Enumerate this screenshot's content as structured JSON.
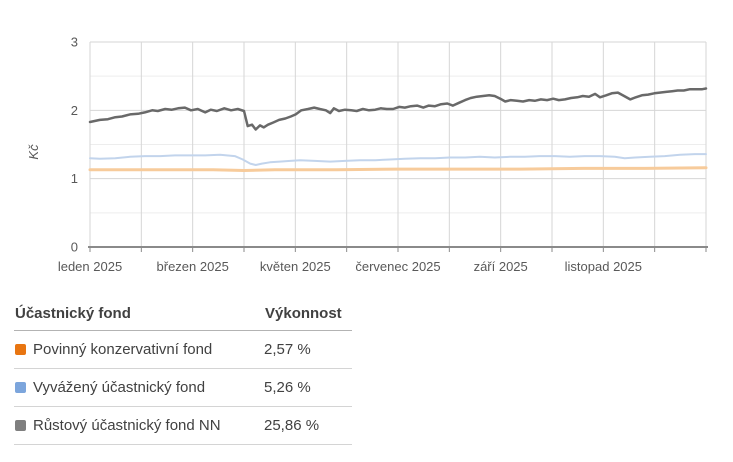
{
  "colors": {
    "grid_major": "#d6d6d6",
    "grid_minor": "#ededed",
    "axis_line": "#8a8a8a",
    "tick_text": "#595959",
    "table_text": "#414141"
  },
  "chart_data": {
    "type": "line",
    "title": "",
    "xlabel": "",
    "ylabel": "Kč",
    "ylim": [
      0,
      3
    ],
    "y_ticks": [
      0,
      1,
      2,
      3
    ],
    "y_minor_gridlines": [
      0.5,
      1.5,
      2.5
    ],
    "x_range_months": 12,
    "x_tick_labels": [
      "leden 2025",
      "březen 2025",
      "květen 2025",
      "červenec 2025",
      "září 2025",
      "listopad 2025"
    ],
    "x_tick_label_month_positions": [
      0,
      2,
      4,
      6,
      8,
      10
    ],
    "grid": "on",
    "legend_position": "table-below",
    "series": [
      {
        "name": "Povinný konzervativní fond",
        "color": "#f7cb9b",
        "width": 3,
        "points": [
          [
            0,
            1.13
          ],
          [
            0.1,
            1.13
          ],
          [
            0.2,
            1.13
          ],
          [
            0.25,
            1.12
          ],
          [
            0.3,
            1.13
          ],
          [
            0.4,
            1.13
          ],
          [
            0.5,
            1.14
          ],
          [
            0.6,
            1.14
          ],
          [
            0.7,
            1.14
          ],
          [
            0.8,
            1.15
          ],
          [
            0.9,
            1.15
          ],
          [
            1,
            1.16
          ]
        ]
      },
      {
        "name": "Vyvážený účastnický fond",
        "color": "#c2d4ec",
        "width": 2,
        "points": [
          [
            0,
            1.3
          ],
          [
            0.016,
            1.29
          ],
          [
            0.041,
            1.3
          ],
          [
            0.065,
            1.32
          ],
          [
            0.089,
            1.33
          ],
          [
            0.114,
            1.33
          ],
          [
            0.138,
            1.34
          ],
          [
            0.162,
            1.34
          ],
          [
            0.187,
            1.34
          ],
          [
            0.211,
            1.35
          ],
          [
            0.235,
            1.33
          ],
          [
            0.248,
            1.28
          ],
          [
            0.26,
            1.22
          ],
          [
            0.269,
            1.2
          ],
          [
            0.279,
            1.22
          ],
          [
            0.292,
            1.24
          ],
          [
            0.308,
            1.25
          ],
          [
            0.325,
            1.26
          ],
          [
            0.341,
            1.27
          ],
          [
            0.365,
            1.26
          ],
          [
            0.39,
            1.25
          ],
          [
            0.414,
            1.26
          ],
          [
            0.438,
            1.27
          ],
          [
            0.463,
            1.27
          ],
          [
            0.487,
            1.28
          ],
          [
            0.511,
            1.29
          ],
          [
            0.536,
            1.3
          ],
          [
            0.56,
            1.3
          ],
          [
            0.584,
            1.31
          ],
          [
            0.609,
            1.31
          ],
          [
            0.633,
            1.32
          ],
          [
            0.657,
            1.31
          ],
          [
            0.682,
            1.32
          ],
          [
            0.706,
            1.32
          ],
          [
            0.73,
            1.33
          ],
          [
            0.755,
            1.33
          ],
          [
            0.779,
            1.32
          ],
          [
            0.803,
            1.33
          ],
          [
            0.828,
            1.33
          ],
          [
            0.852,
            1.32
          ],
          [
            0.868,
            1.3
          ],
          [
            0.885,
            1.31
          ],
          [
            0.909,
            1.32
          ],
          [
            0.933,
            1.33
          ],
          [
            0.958,
            1.35
          ],
          [
            0.982,
            1.36
          ],
          [
            1,
            1.36
          ]
        ]
      },
      {
        "name": "Růstový účastnický fond NN",
        "color": "#696969",
        "width": 2.5,
        "points": [
          [
            0,
            1.83
          ],
          [
            0.016,
            1.86
          ],
          [
            0.029,
            1.87
          ],
          [
            0.041,
            1.9
          ],
          [
            0.052,
            1.91
          ],
          [
            0.065,
            1.94
          ],
          [
            0.078,
            1.95
          ],
          [
            0.089,
            1.97
          ],
          [
            0.101,
            2.0
          ],
          [
            0.11,
            1.99
          ],
          [
            0.122,
            2.02
          ],
          [
            0.133,
            2.01
          ],
          [
            0.143,
            2.03
          ],
          [
            0.154,
            2.04
          ],
          [
            0.164,
            2.0
          ],
          [
            0.175,
            2.02
          ],
          [
            0.187,
            1.97
          ],
          [
            0.196,
            2.01
          ],
          [
            0.206,
            1.99
          ],
          [
            0.218,
            2.03
          ],
          [
            0.229,
            2.0
          ],
          [
            0.24,
            2.02
          ],
          [
            0.25,
            1.99
          ],
          [
            0.256,
            1.77
          ],
          [
            0.263,
            1.79
          ],
          [
            0.269,
            1.72
          ],
          [
            0.276,
            1.78
          ],
          [
            0.282,
            1.75
          ],
          [
            0.289,
            1.79
          ],
          [
            0.297,
            1.82
          ],
          [
            0.307,
            1.86
          ],
          [
            0.317,
            1.88
          ],
          [
            0.326,
            1.91
          ],
          [
            0.334,
            1.94
          ],
          [
            0.343,
            2.0
          ],
          [
            0.354,
            2.02
          ],
          [
            0.364,
            2.04
          ],
          [
            0.373,
            2.02
          ],
          [
            0.383,
            2.0
          ],
          [
            0.39,
            1.96
          ],
          [
            0.396,
            2.03
          ],
          [
            0.404,
            1.99
          ],
          [
            0.414,
            2.01
          ],
          [
            0.424,
            2.0
          ],
          [
            0.433,
            1.99
          ],
          [
            0.443,
            2.02
          ],
          [
            0.453,
            2.0
          ],
          [
            0.463,
            2.01
          ],
          [
            0.472,
            2.03
          ],
          [
            0.482,
            2.02
          ],
          [
            0.492,
            2.02
          ],
          [
            0.502,
            2.05
          ],
          [
            0.511,
            2.04
          ],
          [
            0.521,
            2.06
          ],
          [
            0.531,
            2.07
          ],
          [
            0.541,
            2.04
          ],
          [
            0.55,
            2.07
          ],
          [
            0.56,
            2.06
          ],
          [
            0.57,
            2.09
          ],
          [
            0.58,
            2.1
          ],
          [
            0.589,
            2.07
          ],
          [
            0.599,
            2.11
          ],
          [
            0.609,
            2.15
          ],
          [
            0.618,
            2.18
          ],
          [
            0.628,
            2.2
          ],
          [
            0.638,
            2.21
          ],
          [
            0.648,
            2.22
          ],
          [
            0.657,
            2.21
          ],
          [
            0.666,
            2.17
          ],
          [
            0.674,
            2.13
          ],
          [
            0.683,
            2.15
          ],
          [
            0.693,
            2.14
          ],
          [
            0.703,
            2.13
          ],
          [
            0.713,
            2.15
          ],
          [
            0.722,
            2.14
          ],
          [
            0.732,
            2.16
          ],
          [
            0.742,
            2.15
          ],
          [
            0.752,
            2.17
          ],
          [
            0.761,
            2.15
          ],
          [
            0.771,
            2.16
          ],
          [
            0.781,
            2.18
          ],
          [
            0.791,
            2.19
          ],
          [
            0.8,
            2.21
          ],
          [
            0.81,
            2.2
          ],
          [
            0.82,
            2.24
          ],
          [
            0.828,
            2.19
          ],
          [
            0.838,
            2.22
          ],
          [
            0.847,
            2.25
          ],
          [
            0.857,
            2.26
          ],
          [
            0.867,
            2.21
          ],
          [
            0.877,
            2.16
          ],
          [
            0.886,
            2.19
          ],
          [
            0.896,
            2.22
          ],
          [
            0.906,
            2.23
          ],
          [
            0.916,
            2.25
          ],
          [
            0.925,
            2.26
          ],
          [
            0.935,
            2.27
          ],
          [
            0.945,
            2.28
          ],
          [
            0.954,
            2.29
          ],
          [
            0.964,
            2.29
          ],
          [
            0.974,
            2.31
          ],
          [
            0.984,
            2.31
          ],
          [
            0.994,
            2.31
          ],
          [
            1,
            2.32
          ]
        ]
      }
    ]
  },
  "table": {
    "header_fund": "Účastnický fond",
    "header_value": "Výkonnost",
    "rows": [
      {
        "fund": "Povinný konzervativní fond",
        "value": "2,57 %",
        "swatch": "#e87511"
      },
      {
        "fund": "Vyvážený účastnický fond",
        "value": "5,26 %",
        "swatch": "#7ca5dc"
      },
      {
        "fund": "Růstový účastnický fond NN",
        "value": "25,86 %",
        "swatch": "#7f7f7f"
      }
    ]
  }
}
